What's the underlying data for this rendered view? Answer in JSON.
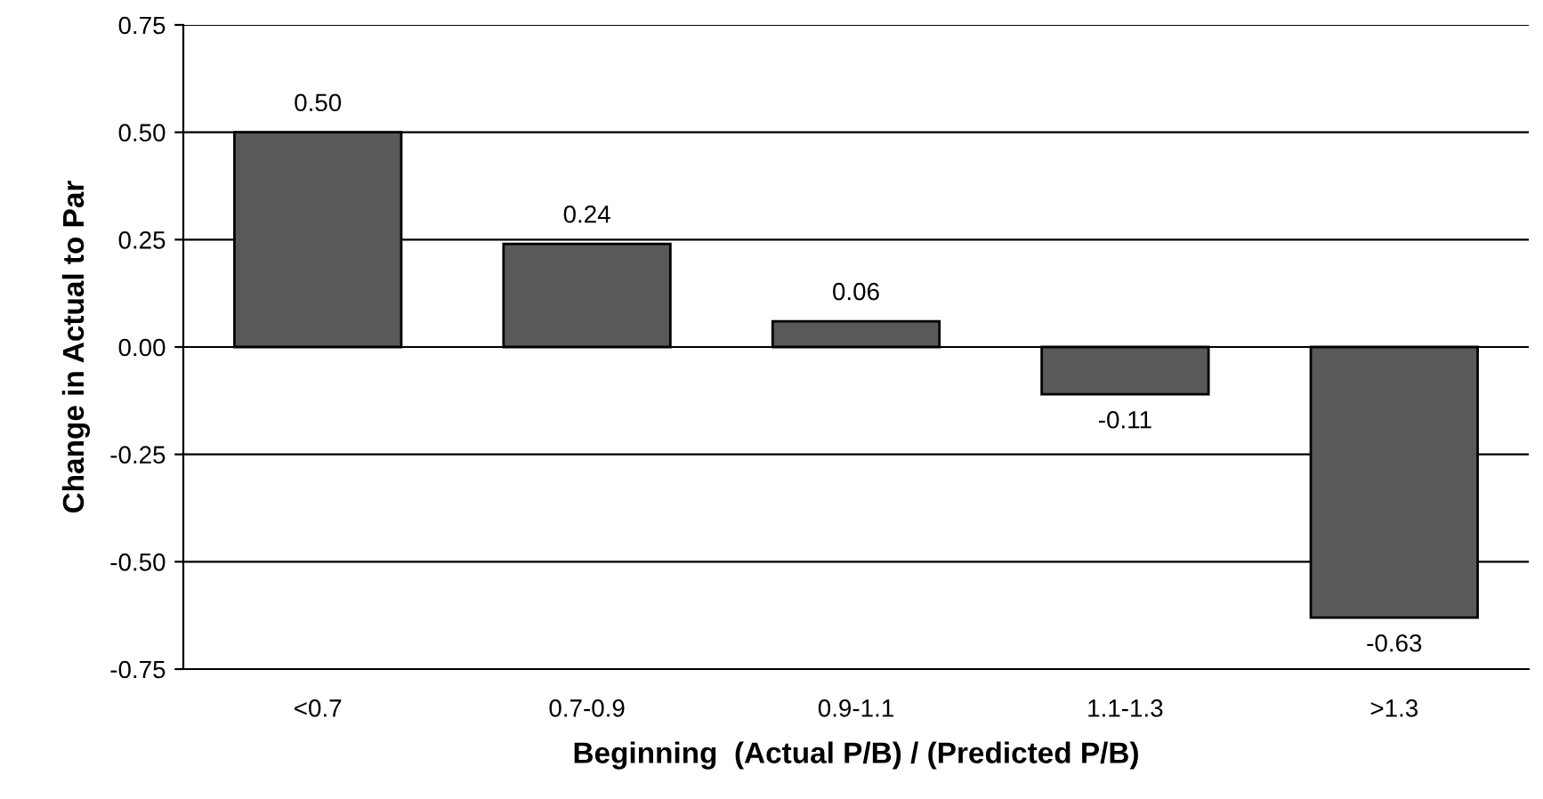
{
  "chart_data": {
    "type": "bar",
    "xlabel": "Beginning  (Actual P/B) / (Predicted P/B)",
    "ylabel": "Change in Actual to Par",
    "categories": [
      "<0.7",
      "0.7-0.9",
      "0.9-1.1",
      "1.1-1.3",
      ">1.3"
    ],
    "values": [
      0.5,
      0.24,
      0.06,
      -0.11,
      -0.63
    ],
    "value_labels": [
      "0.50",
      "0.24",
      "0.06",
      "-0.11",
      "-0.63"
    ],
    "color": "#595959",
    "ylim": [
      -0.75,
      0.75
    ],
    "yticks": [
      -0.75,
      {
        "value": -0.5,
        "label": "-0.50"
      },
      -0.25,
      {
        "value": 0,
        "label": "0.00"
      },
      0.25,
      {
        "value": 0.5,
        "label": "0.50"
      },
      0.75
    ],
    "grid": "y",
    "legend": false
  }
}
